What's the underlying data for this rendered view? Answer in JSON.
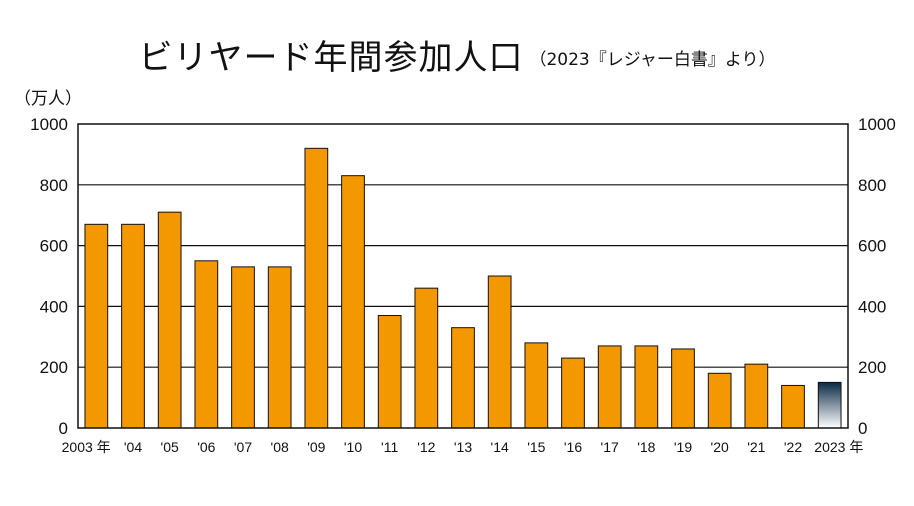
{
  "chart_data": {
    "type": "bar",
    "title": "ビリヤード年間参加人口",
    "subtitle": "（2023『レジャー白書』より）",
    "ylabel": "（万人）",
    "xlabel": "",
    "ylim": [
      0,
      1000
    ],
    "yticks": [
      "0",
      "200",
      "400",
      "600",
      "800",
      "1000"
    ],
    "grid": true,
    "categories": [
      "2003 年",
      "'04",
      "'05",
      "'06",
      "'07",
      "'08",
      "'09",
      "'10",
      "'11",
      "'12",
      "'13",
      "'14",
      "'15",
      "'16",
      "'17",
      "'18",
      "'19",
      "'20",
      "'21",
      "'22",
      "2023 年"
    ],
    "values": [
      670,
      670,
      710,
      550,
      530,
      530,
      920,
      830,
      370,
      460,
      330,
      500,
      280,
      230,
      270,
      270,
      260,
      180,
      210,
      140,
      150
    ],
    "bar_color": "#f39800",
    "highlight_colors": [
      "#0a2a44",
      "#ffffff"
    ]
  }
}
